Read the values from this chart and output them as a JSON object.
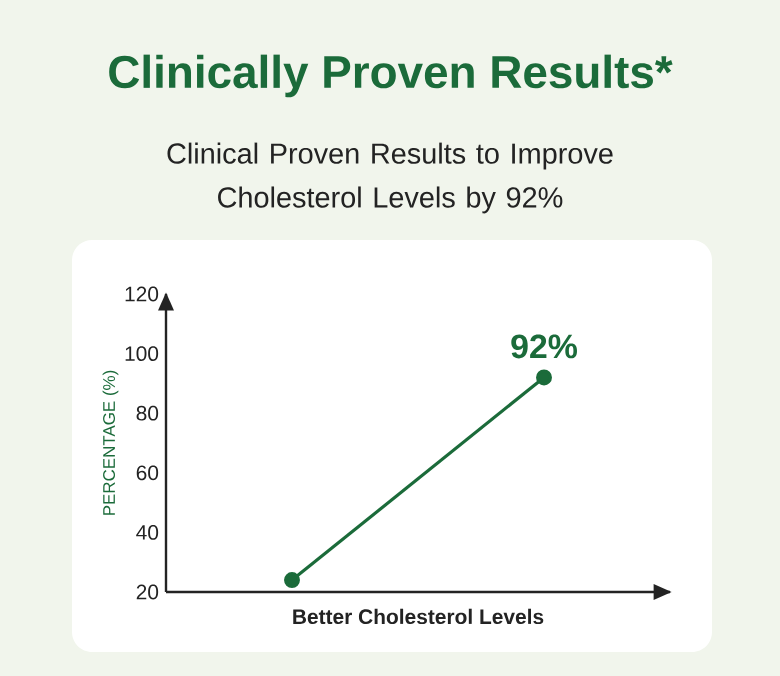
{
  "chart_data": {
    "type": "line",
    "title": "Clinically Proven Results*",
    "subtitle": "Clinical Proven Results to Improve Cholesterol Levels by 92%",
    "xlabel": "Better Cholesterol Levels",
    "ylabel": "PERCENTAGE (%)",
    "categories": [
      null,
      null
    ],
    "series": [
      {
        "color": "#1b6b3a",
        "values": [
          24,
          92
        ],
        "value_labels": [
          null,
          "92%"
        ]
      }
    ],
    "ylim": [
      20,
      120
    ],
    "yticks": [
      20,
      40,
      60,
      80,
      100,
      120
    ],
    "grid": false,
    "marker": "circle",
    "line_style": "solid"
  }
}
